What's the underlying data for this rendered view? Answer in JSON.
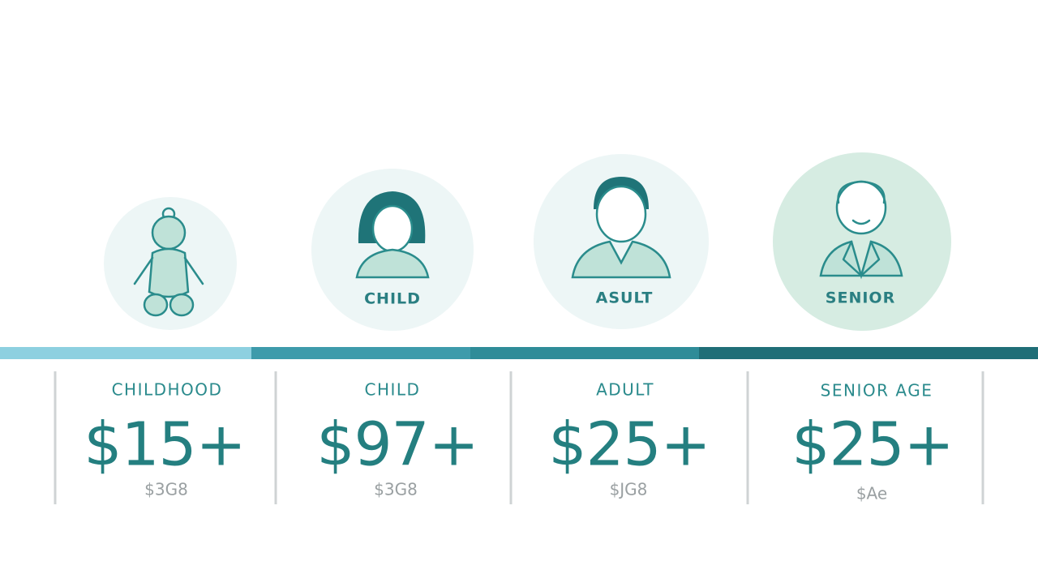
{
  "circle_labels": [
    "CHILD",
    "ASULT",
    "SENIOR"
  ],
  "columns": [
    {
      "heading": "CHILDHOOD",
      "price": "$15+",
      "note": "$3G8"
    },
    {
      "heading": "CHILD",
      "price": "$97+",
      "note": "$3G8"
    },
    {
      "heading": "ADULT",
      "price": "$25+",
      "note": "$JG8"
    },
    {
      "heading": "SENIOR AGE",
      "price": "$25+",
      "note": "$Ae"
    }
  ]
}
